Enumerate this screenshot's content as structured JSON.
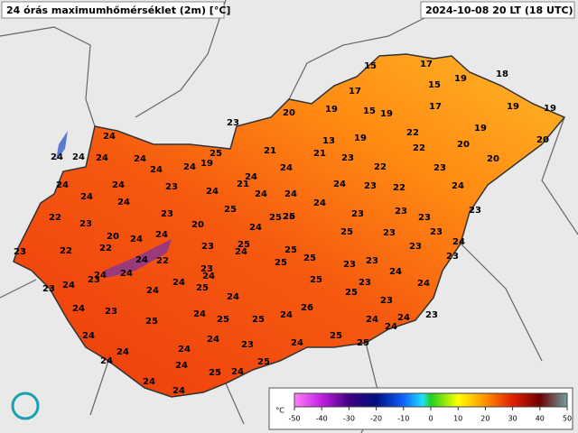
{
  "header": {
    "title": "24 órás maximumhőmérséklet (2m) [°C]",
    "time": "2024-10-08 20 LT (18 UTC)"
  },
  "stations": [
    15,
    17,
    18,
    19,
    15,
    17,
    20,
    19,
    15,
    19,
    17,
    19,
    19,
    23,
    19,
    19,
    13,
    22,
    20,
    20,
    21,
    21,
    23,
    22,
    20,
    25,
    24,
    24,
    24,
    24,
    24,
    24,
    24,
    19,
    24,
    24,
    22,
    23,
    24,
    24,
    24,
    23,
    24,
    21,
    24,
    24,
    24,
    23,
    22,
    24,
    22,
    23,
    24,
    23,
    20,
    25,
    25,
    24,
    24,
    23,
    23,
    23,
    23,
    23,
    22,
    22,
    24,
    20,
    24,
    23,
    25,
    24,
    25,
    25,
    23,
    23,
    23,
    24,
    24,
    24,
    24,
    22,
    23,
    25,
    25,
    23,
    24,
    23,
    24,
    24,
    25,
    25,
    23,
    23,
    24,
    23,
    24,
    25,
    23,
    24,
    24,
    23,
    24,
    26,
    23,
    23,
    24,
    25,
    25,
    25,
    24,
    24,
    24,
    24,
    24,
    24,
    23,
    24,
    25,
    24,
    24,
    24,
    24,
    25,
    24,
    25,
    25,
    24,
    24,
    26,
    25
  ],
  "colorbar": {
    "unit": "°C",
    "ticks": [
      -50,
      -40,
      -30,
      -20,
      -10,
      0,
      10,
      20,
      30,
      40,
      50
    ]
  }
}
